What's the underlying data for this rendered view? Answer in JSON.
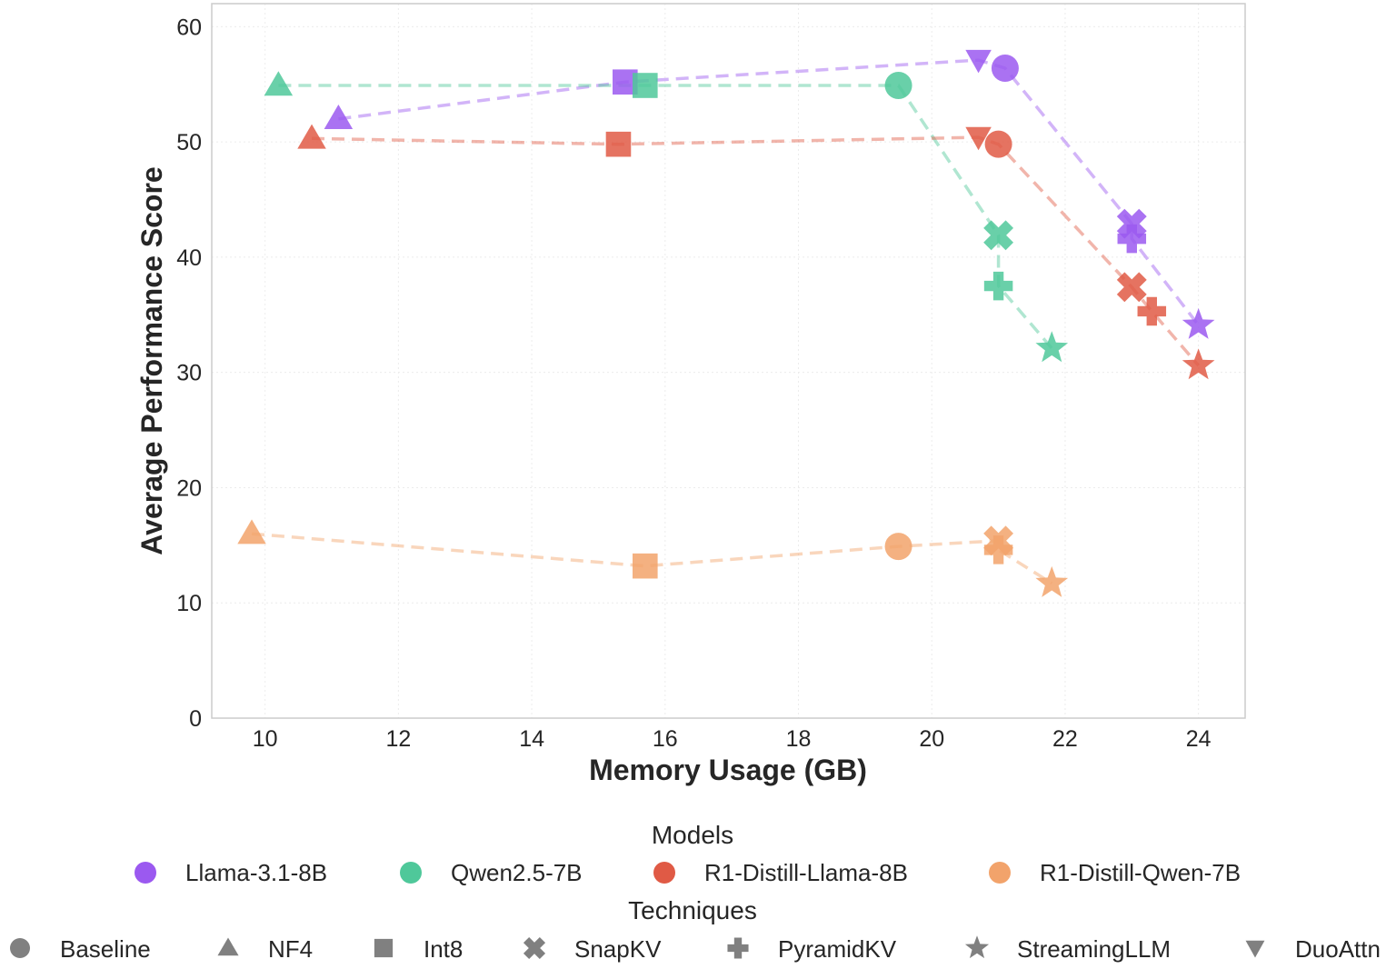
{
  "chart_data": {
    "type": "scatter",
    "xlabel": "Memory Usage (GB)",
    "ylabel": "Average Performance Score",
    "xlim": [
      9.2,
      24.7
    ],
    "ylim": [
      0,
      62
    ],
    "xticks": [
      10,
      12,
      14,
      16,
      18,
      20,
      22,
      24
    ],
    "yticks": [
      0,
      10,
      20,
      30,
      40,
      50,
      60
    ],
    "grid": true,
    "legend_placement": "bottom",
    "models_legend_title": "Models",
    "techniques_legend_title": "Techniques",
    "techniques": [
      {
        "name": "Baseline",
        "icon": "circle"
      },
      {
        "name": "NF4",
        "icon": "triangle-up"
      },
      {
        "name": "Int8",
        "icon": "square"
      },
      {
        "name": "SnapKV",
        "icon": "x"
      },
      {
        "name": "PyramidKV",
        "icon": "plus"
      },
      {
        "name": "StreamingLLM",
        "icon": "star"
      },
      {
        "name": "DuoAttn",
        "icon": "triangle-down"
      }
    ],
    "series": [
      {
        "name": "Llama-3.1-8B",
        "color": "#9b59f0",
        "points": [
          {
            "technique": "NF4",
            "x": 11.1,
            "y": 52.0
          },
          {
            "technique": "Int8",
            "x": 15.4,
            "y": 55.2
          },
          {
            "technique": "DuoAttn",
            "x": 20.7,
            "y": 57.1
          },
          {
            "technique": "Baseline",
            "x": 21.1,
            "y": 56.4
          },
          {
            "technique": "SnapKV",
            "x": 23.0,
            "y": 42.9
          },
          {
            "technique": "PyramidKV",
            "x": 23.0,
            "y": 41.6
          },
          {
            "technique": "StreamingLLM",
            "x": 24.0,
            "y": 34.1
          }
        ]
      },
      {
        "name": "Qwen2.5-7B",
        "color": "#4fc89a",
        "points": [
          {
            "technique": "NF4",
            "x": 10.2,
            "y": 54.9
          },
          {
            "technique": "Int8",
            "x": 15.7,
            "y": 54.9
          },
          {
            "technique": "Baseline",
            "x": 19.5,
            "y": 54.9
          },
          {
            "technique": "SnapKV",
            "x": 21.0,
            "y": 41.9
          },
          {
            "technique": "PyramidKV",
            "x": 21.0,
            "y": 37.5
          },
          {
            "technique": "StreamingLLM",
            "x": 21.8,
            "y": 32.1
          }
        ]
      },
      {
        "name": "R1-Distill-Llama-8B",
        "color": "#e05a45",
        "points": [
          {
            "technique": "NF4",
            "x": 10.7,
            "y": 50.3
          },
          {
            "technique": "Int8",
            "x": 15.3,
            "y": 49.8
          },
          {
            "technique": "DuoAttn",
            "x": 20.7,
            "y": 50.4
          },
          {
            "technique": "Baseline",
            "x": 21.0,
            "y": 49.8
          },
          {
            "technique": "SnapKV",
            "x": 23.0,
            "y": 37.4
          },
          {
            "technique": "PyramidKV",
            "x": 23.3,
            "y": 35.3
          },
          {
            "technique": "StreamingLLM",
            "x": 24.0,
            "y": 30.6
          }
        ]
      },
      {
        "name": "R1-Distill-Qwen-7B",
        "color": "#f2a36b",
        "points": [
          {
            "technique": "NF4",
            "x": 9.8,
            "y": 16.0
          },
          {
            "technique": "Int8",
            "x": 15.7,
            "y": 13.2
          },
          {
            "technique": "Baseline",
            "x": 19.5,
            "y": 14.9
          },
          {
            "technique": "SnapKV",
            "x": 21.0,
            "y": 15.4
          },
          {
            "technique": "PyramidKV",
            "x": 21.0,
            "y": 14.6
          },
          {
            "technique": "StreamingLLM",
            "x": 21.8,
            "y": 11.7
          }
        ]
      }
    ]
  }
}
